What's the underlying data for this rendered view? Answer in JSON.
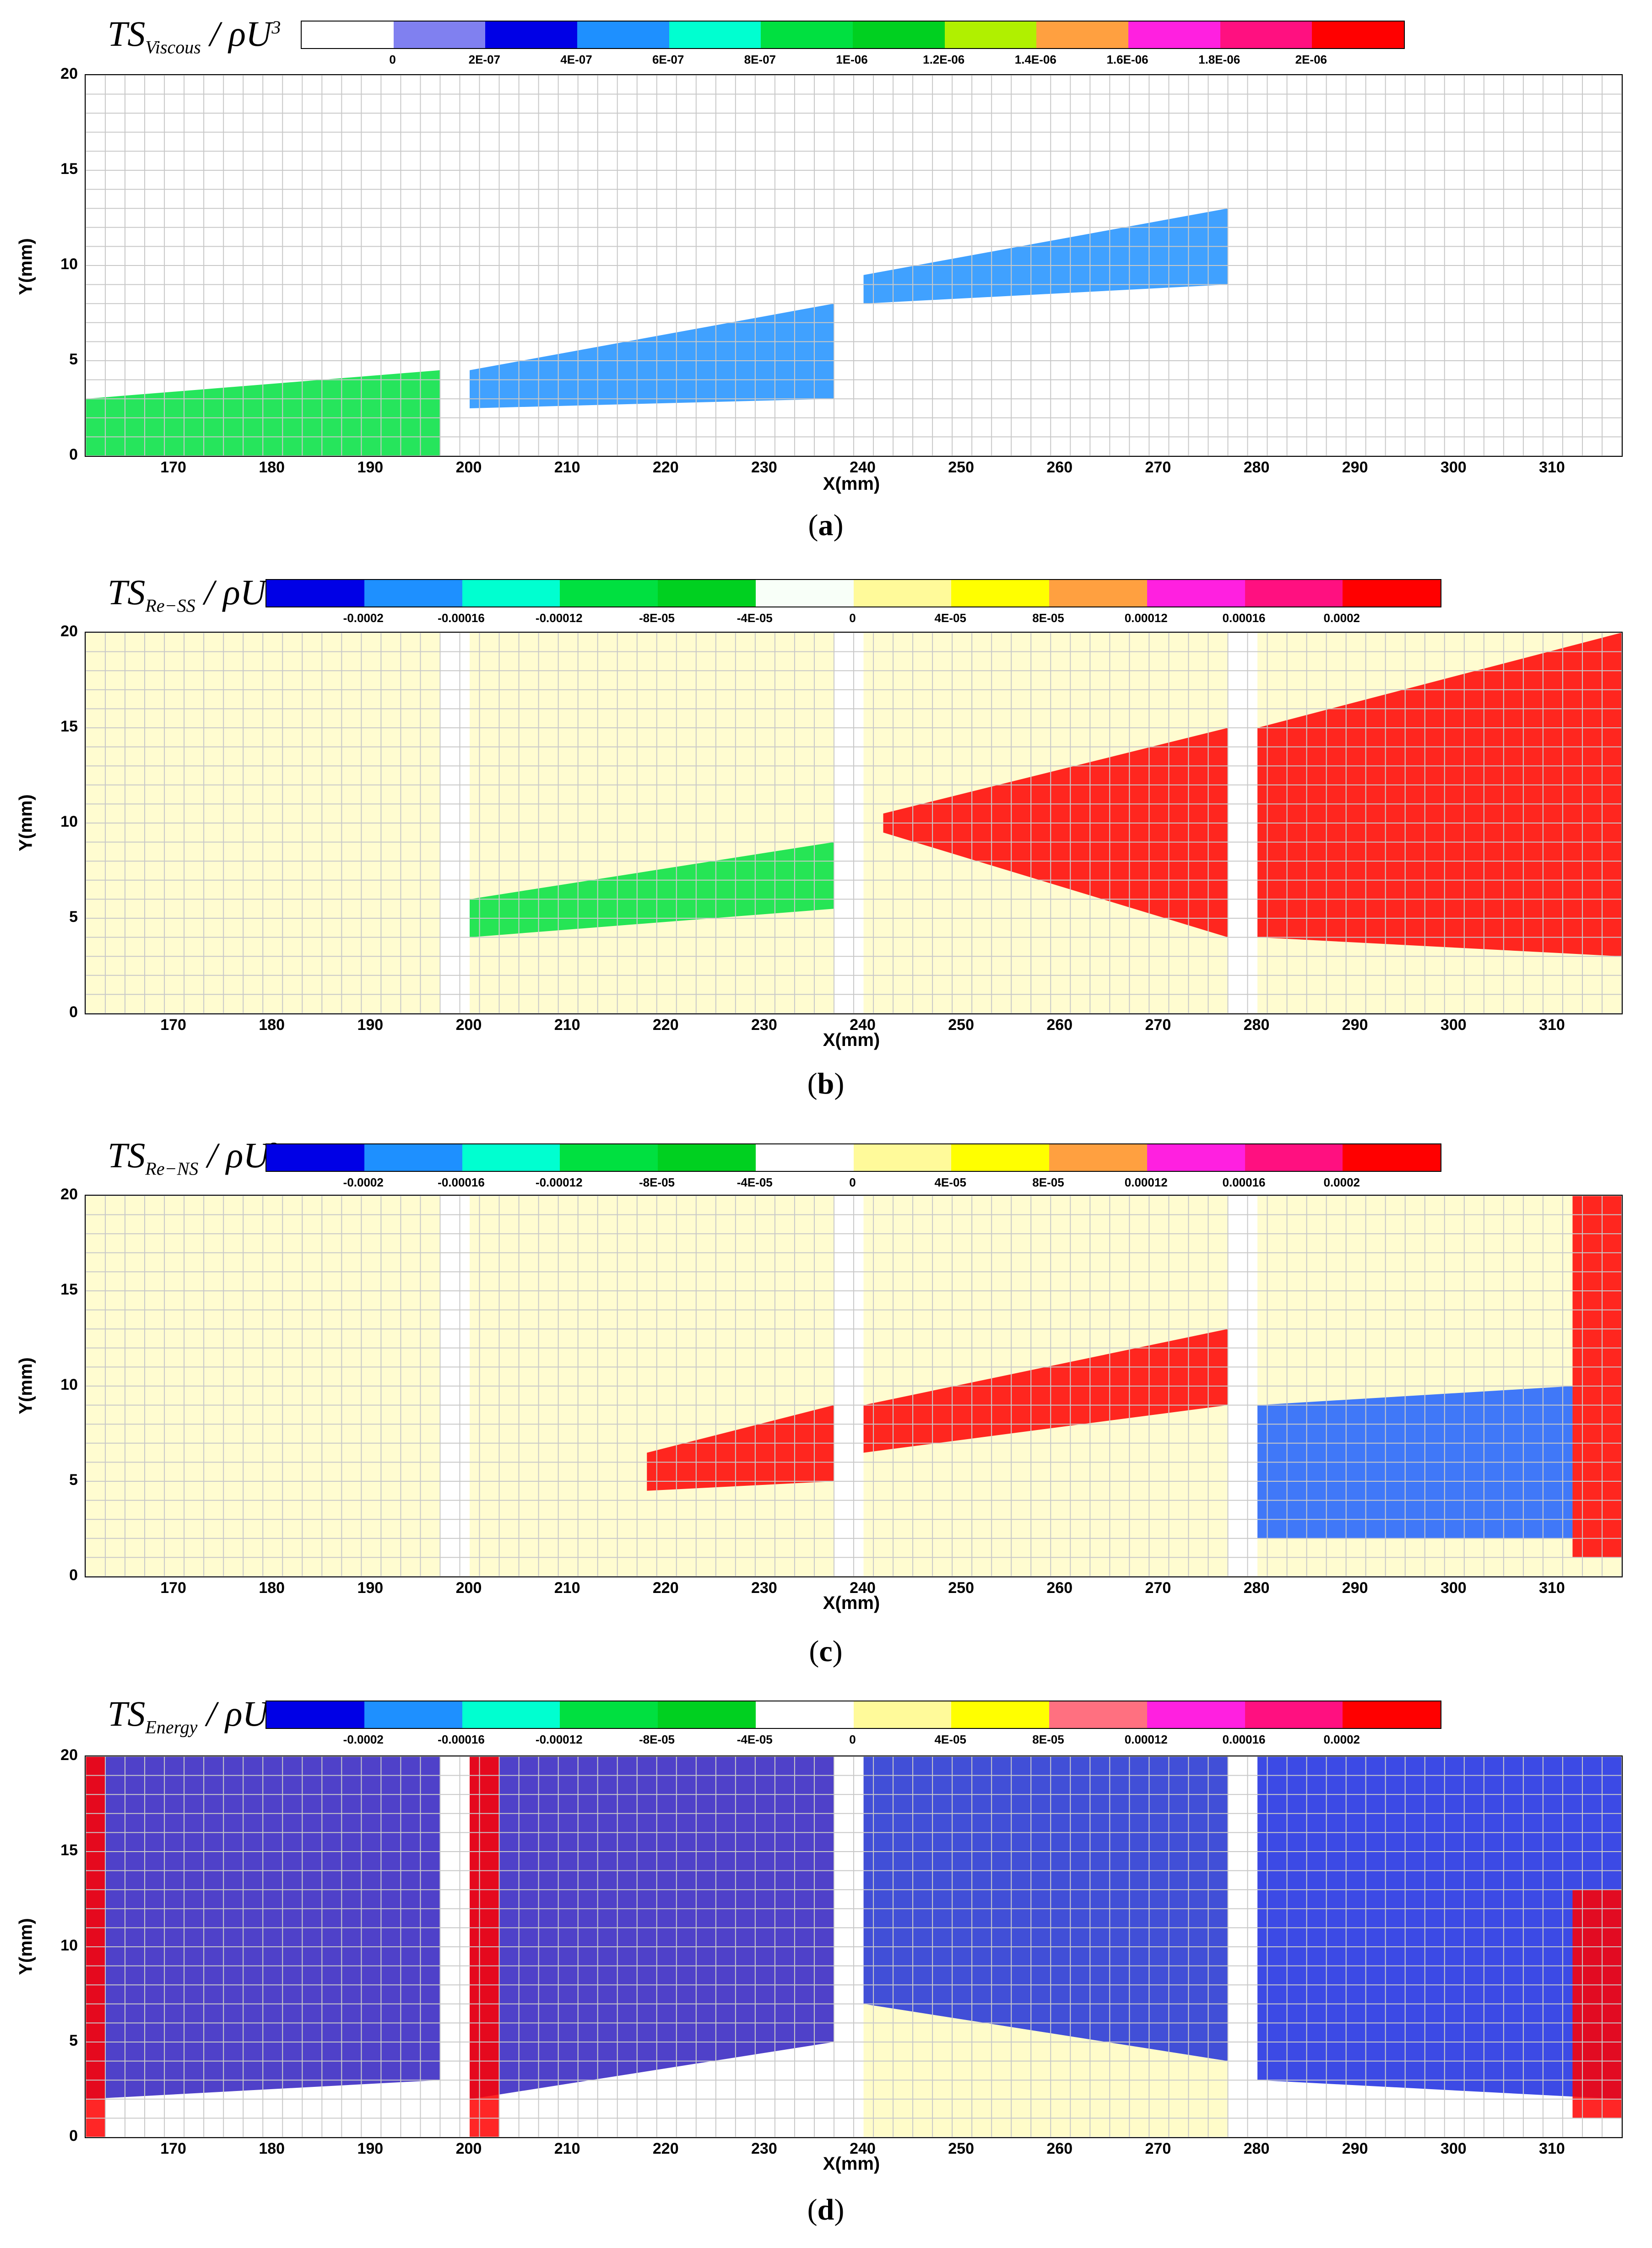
{
  "chart_data": [
    {
      "type": "heatmap",
      "panel": "a",
      "caption_letter": "a",
      "colorbar_label": {
        "base": "TS",
        "sub": "Viscous",
        "denominator": "ρU"
      },
      "colorbar_colors": [
        "#ffffff",
        "#8080f0",
        "#0000e6",
        "#1e90ff",
        "#00ffd0",
        "#00e040",
        "#00d020",
        "#b0f000",
        "#ffa040",
        "#ff20e0",
        "#ff1080",
        "#ff0000"
      ],
      "colorbar_ticks": [
        "0",
        "2E-07",
        "4E-07",
        "6E-07",
        "8E-07",
        "1E-06",
        "1.2E-06",
        "1.4E-06",
        "1.6E-06",
        "1.8E-06",
        "2E-06"
      ],
      "xlabel": "X(mm)",
      "ylabel": "Y(mm)",
      "xlim": [
        161,
        317
      ],
      "ylim": [
        0,
        20
      ],
      "xticks": [
        "170",
        "180",
        "190",
        "200",
        "210",
        "220",
        "230",
        "240",
        "250",
        "260",
        "270",
        "280",
        "290",
        "300",
        "310"
      ],
      "yticks": [
        "0",
        "5",
        "10",
        "15",
        "20"
      ],
      "gaps_mm": [
        [
          197,
          200
        ],
        [
          237,
          240
        ],
        [
          277,
          280
        ]
      ],
      "regions": [
        {
          "x": [
            161,
            197
          ],
          "y0": [
            0,
            0
          ],
          "y1": [
            3,
            4.5
          ],
          "color": "#00e040"
        },
        {
          "x": [
            200,
            237
          ],
          "y0": [
            2.5,
            3
          ],
          "y1": [
            4.5,
            8
          ],
          "color": "#1e90ff"
        },
        {
          "x": [
            240,
            277
          ],
          "y0": [
            8,
            9
          ],
          "y1": [
            9.5,
            13
          ],
          "color": "#1e90ff"
        }
      ]
    },
    {
      "type": "heatmap",
      "panel": "b",
      "caption_letter": "b",
      "colorbar_label": {
        "base": "TS",
        "sub": "Re−SS",
        "denominator": "ρU"
      },
      "colorbar_colors": [
        "#0000e6",
        "#1e90ff",
        "#00ffd0",
        "#00e040",
        "#00d020",
        "#f8fff8",
        "#fffa9a",
        "#ffff00",
        "#ffa040",
        "#ff20e0",
        "#ff1080",
        "#ff0000"
      ],
      "colorbar_ticks": [
        "-0.0002",
        "-0.00016",
        "-0.00012",
        "-8E-05",
        "-4E-05",
        "0",
        "4E-05",
        "8E-05",
        "0.00012",
        "0.00016",
        "0.0002"
      ],
      "xlabel": "X(mm)",
      "ylabel": "Y(mm)",
      "xlim": [
        161,
        317
      ],
      "ylim": [
        0,
        20
      ],
      "xticks": [
        "170",
        "180",
        "190",
        "200",
        "210",
        "220",
        "230",
        "240",
        "250",
        "260",
        "270",
        "280",
        "290",
        "300",
        "310"
      ],
      "yticks": [
        "0",
        "5",
        "10",
        "15",
        "20"
      ],
      "gaps_mm": [
        [
          197,
          200
        ],
        [
          237,
          240
        ],
        [
          277,
          280
        ]
      ],
      "regions": [
        {
          "x": [
            161,
            317
          ],
          "y0": [
            0,
            0
          ],
          "y1": [
            20,
            20
          ],
          "color": "#fffbc8"
        },
        {
          "x": [
            200,
            237
          ],
          "y0": [
            4,
            5.5
          ],
          "y1": [
            6,
            9
          ],
          "color": "#00e040"
        },
        {
          "x": [
            242,
            277
          ],
          "y0": [
            9.5,
            4
          ],
          "y1": [
            10.5,
            15
          ],
          "color": "#ff0000"
        },
        {
          "x": [
            280,
            317
          ],
          "y0": [
            4,
            3
          ],
          "y1": [
            15,
            20
          ],
          "color": "#ff0000"
        }
      ]
    },
    {
      "type": "heatmap",
      "panel": "c",
      "caption_letter": "c",
      "colorbar_label": {
        "base": "TS",
        "sub": "Re−NS",
        "denominator": "ρU"
      },
      "colorbar_colors": [
        "#0000e6",
        "#1e90ff",
        "#00ffd0",
        "#00e040",
        "#00d020",
        "#ffffff",
        "#fffa9a",
        "#ffff00",
        "#ffa040",
        "#ff20e0",
        "#ff1080",
        "#ff0000"
      ],
      "colorbar_ticks": [
        "-0.0002",
        "-0.00016",
        "-0.00012",
        "-8E-05",
        "-4E-05",
        "0",
        "4E-05",
        "8E-05",
        "0.00012",
        "0.00016",
        "0.0002"
      ],
      "xlabel": "X(mm)",
      "ylabel": "Y(mm)",
      "xlim": [
        161,
        317
      ],
      "ylim": [
        0,
        20
      ],
      "xticks": [
        "170",
        "180",
        "190",
        "200",
        "210",
        "220",
        "230",
        "240",
        "250",
        "260",
        "270",
        "280",
        "290",
        "300",
        "310"
      ],
      "yticks": [
        "0",
        "5",
        "10",
        "15",
        "20"
      ],
      "gaps_mm": [
        [
          197,
          200
        ],
        [
          237,
          240
        ],
        [
          277,
          280
        ]
      ],
      "regions": [
        {
          "x": [
            161,
            317
          ],
          "y0": [
            0,
            0
          ],
          "y1": [
            20,
            20
          ],
          "color": "#fffbc8"
        },
        {
          "x": [
            218,
            237
          ],
          "y0": [
            4.5,
            5
          ],
          "y1": [
            6.5,
            9
          ],
          "color": "#ff0000"
        },
        {
          "x": [
            240,
            277
          ],
          "y0": [
            6.5,
            9
          ],
          "y1": [
            9,
            13
          ],
          "color": "#ff0000"
        },
        {
          "x": [
            280,
            312
          ],
          "y0": [
            2,
            2
          ],
          "y1": [
            9,
            10
          ],
          "color": "#1e60ff"
        },
        {
          "x": [
            312,
            317
          ],
          "y0": [
            1,
            1
          ],
          "y1": [
            20,
            20
          ],
          "color": "#ff0000"
        }
      ]
    },
    {
      "type": "heatmap",
      "panel": "d",
      "caption_letter": "d",
      "colorbar_label": {
        "base": "TS",
        "sub": "Energy",
        "denominator": "ρU"
      },
      "colorbar_colors": [
        "#0000e6",
        "#1e90ff",
        "#00ffd0",
        "#00e040",
        "#00d020",
        "#ffffff",
        "#fffa9a",
        "#ffff00",
        "#ff7080",
        "#ff20e0",
        "#ff1080",
        "#ff0000"
      ],
      "colorbar_ticks": [
        "-0.0002",
        "-0.00016",
        "-0.00012",
        "-8E-05",
        "-4E-05",
        "0",
        "4E-05",
        "8E-05",
        "0.00012",
        "0.00016",
        "0.0002"
      ],
      "xlabel": "X(mm)",
      "ylabel": "Y(mm)",
      "xlim": [
        161,
        317
      ],
      "ylim": [
        0,
        20
      ],
      "xticks": [
        "170",
        "180",
        "190",
        "200",
        "210",
        "220",
        "230",
        "240",
        "250",
        "260",
        "270",
        "280",
        "290",
        "300",
        "310"
      ],
      "yticks": [
        "0",
        "5",
        "10",
        "15",
        "20"
      ],
      "gaps_mm": [
        [
          197,
          200
        ],
        [
          237,
          240
        ],
        [
          277,
          280
        ]
      ],
      "regions": [
        {
          "x": [
            161,
            197
          ],
          "y0": [
            2,
            3
          ],
          "y1": [
            20,
            20
          ],
          "color": "#3020c0"
        },
        {
          "x": [
            161,
            163
          ],
          "y0": [
            0,
            0
          ],
          "y1": [
            20,
            20
          ],
          "color": "#ff0000"
        },
        {
          "x": [
            200,
            237
          ],
          "y0": [
            2,
            5
          ],
          "y1": [
            20,
            20
          ],
          "color": "#3020c0"
        },
        {
          "x": [
            200,
            203
          ],
          "y0": [
            0,
            0
          ],
          "y1": [
            20,
            20
          ],
          "color": "#ff0000"
        },
        {
          "x": [
            240,
            277
          ],
          "y0": [
            7,
            4
          ],
          "y1": [
            20,
            20
          ],
          "color": "#2030d0"
        },
        {
          "x": [
            240,
            277
          ],
          "y0": [
            0,
            0
          ],
          "y1": [
            7,
            4
          ],
          "color": "#fffbc0"
        },
        {
          "x": [
            280,
            317
          ],
          "y0": [
            3,
            2
          ],
          "y1": [
            20,
            20
          ],
          "color": "#1a2ae0"
        },
        {
          "x": [
            312,
            317
          ],
          "y0": [
            1,
            1
          ],
          "y1": [
            13,
            13
          ],
          "color": "#ff0000"
        }
      ]
    }
  ]
}
